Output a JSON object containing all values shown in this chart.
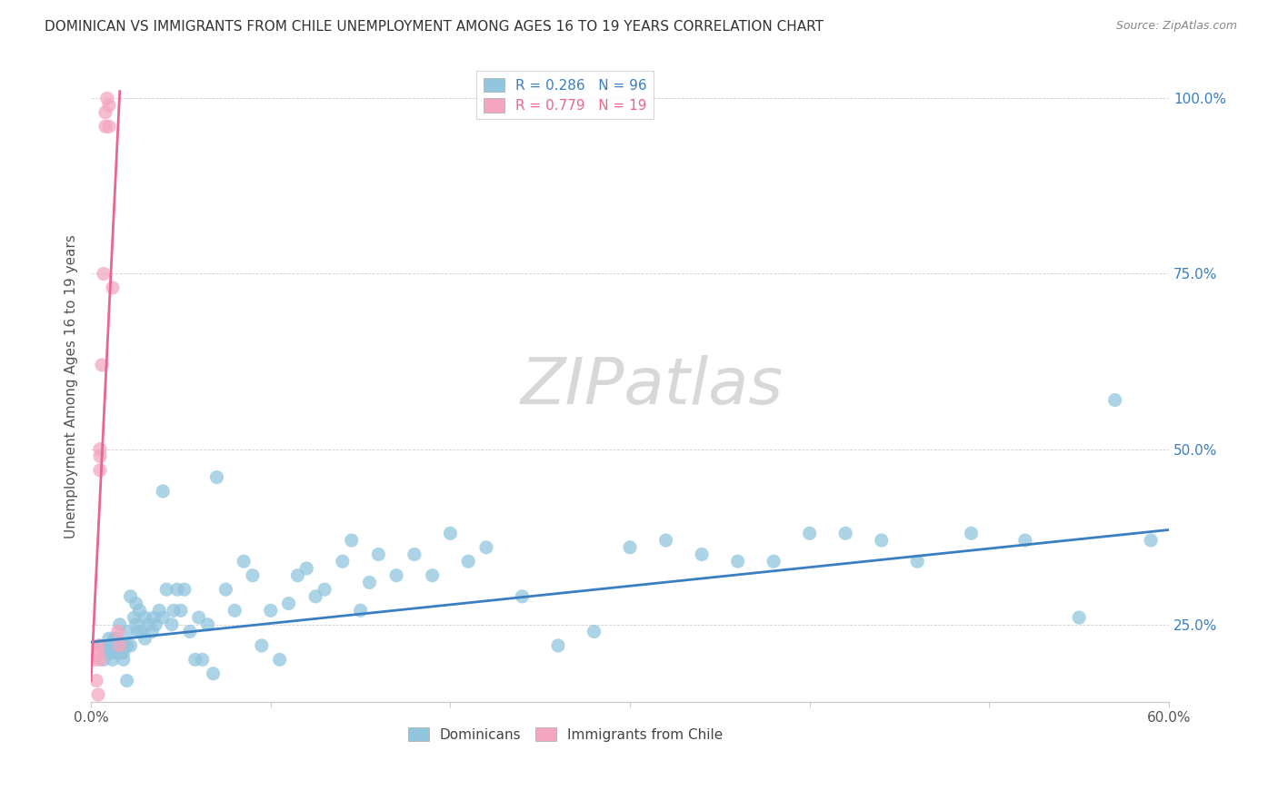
{
  "title": "DOMINICAN VS IMMIGRANTS FROM CHILE UNEMPLOYMENT AMONG AGES 16 TO 19 YEARS CORRELATION CHART",
  "source": "Source: ZipAtlas.com",
  "ylabel": "Unemployment Among Ages 16 to 19 years",
  "legend_entries": [
    {
      "label": "R = 0.286   N = 96",
      "color": "#6baed6"
    },
    {
      "label": "R = 0.779   N = 19",
      "color": "#e8678a"
    }
  ],
  "legend_dominicans": "Dominicans",
  "legend_chile": "Immigrants from Chile",
  "watermark": "ZIPatlas",
  "blue_scatter_color": "#92c5de",
  "pink_scatter_color": "#f4a6c0",
  "blue_line_color": "#3a7fc1",
  "pink_line_color": "#e8678a",
  "blue_text_color": "#3a7fc1",
  "pink_text_color": "#e8678a",
  "xmin": 0.0,
  "xmax": 0.6,
  "ymin": 0.14,
  "ymax": 1.04,
  "dominicans_x": [
    0.005,
    0.007,
    0.008,
    0.01,
    0.01,
    0.01,
    0.01,
    0.012,
    0.012,
    0.012,
    0.013,
    0.013,
    0.014,
    0.014,
    0.015,
    0.015,
    0.015,
    0.016,
    0.017,
    0.017,
    0.018,
    0.018,
    0.018,
    0.02,
    0.02,
    0.02,
    0.022,
    0.022,
    0.024,
    0.025,
    0.025,
    0.026,
    0.027,
    0.028,
    0.03,
    0.03,
    0.032,
    0.034,
    0.035,
    0.036,
    0.038,
    0.04,
    0.04,
    0.042,
    0.045,
    0.046,
    0.048,
    0.05,
    0.052,
    0.055,
    0.058,
    0.06,
    0.062,
    0.065,
    0.068,
    0.07,
    0.075,
    0.08,
    0.085,
    0.09,
    0.095,
    0.1,
    0.105,
    0.11,
    0.115,
    0.12,
    0.125,
    0.13,
    0.14,
    0.145,
    0.15,
    0.155,
    0.16,
    0.17,
    0.18,
    0.19,
    0.2,
    0.21,
    0.22,
    0.24,
    0.26,
    0.28,
    0.3,
    0.32,
    0.34,
    0.36,
    0.38,
    0.4,
    0.42,
    0.44,
    0.46,
    0.49,
    0.52,
    0.55,
    0.57,
    0.59
  ],
  "dominicans_y": [
    0.22,
    0.2,
    0.21,
    0.22,
    0.21,
    0.23,
    0.22,
    0.2,
    0.21,
    0.22,
    0.23,
    0.22,
    0.21,
    0.23,
    0.22,
    0.21,
    0.22,
    0.25,
    0.22,
    0.21,
    0.2,
    0.21,
    0.22,
    0.24,
    0.22,
    0.17,
    0.29,
    0.22,
    0.26,
    0.25,
    0.28,
    0.24,
    0.27,
    0.24,
    0.26,
    0.23,
    0.25,
    0.24,
    0.26,
    0.25,
    0.27,
    0.26,
    0.44,
    0.3,
    0.25,
    0.27,
    0.3,
    0.27,
    0.3,
    0.24,
    0.2,
    0.26,
    0.2,
    0.25,
    0.18,
    0.46,
    0.3,
    0.27,
    0.34,
    0.32,
    0.22,
    0.27,
    0.2,
    0.28,
    0.32,
    0.33,
    0.29,
    0.3,
    0.34,
    0.37,
    0.27,
    0.31,
    0.35,
    0.32,
    0.35,
    0.32,
    0.38,
    0.34,
    0.36,
    0.29,
    0.22,
    0.24,
    0.36,
    0.37,
    0.35,
    0.34,
    0.34,
    0.38,
    0.38,
    0.37,
    0.34,
    0.38,
    0.37,
    0.26,
    0.57,
    0.37
  ],
  "chile_x": [
    0.002,
    0.003,
    0.004,
    0.004,
    0.004,
    0.005,
    0.005,
    0.005,
    0.005,
    0.006,
    0.007,
    0.008,
    0.008,
    0.009,
    0.01,
    0.01,
    0.012,
    0.015,
    0.016
  ],
  "chile_y": [
    0.2,
    0.17,
    0.22,
    0.21,
    0.15,
    0.2,
    0.49,
    0.5,
    0.47,
    0.62,
    0.75,
    0.96,
    0.98,
    1.0,
    0.99,
    0.96,
    0.73,
    0.24,
    0.22
  ],
  "blue_line_x": [
    0.0,
    0.6
  ],
  "blue_line_y": [
    0.225,
    0.385
  ],
  "pink_line_x": [
    0.0,
    0.016
  ],
  "pink_line_y": [
    0.17,
    1.01
  ]
}
